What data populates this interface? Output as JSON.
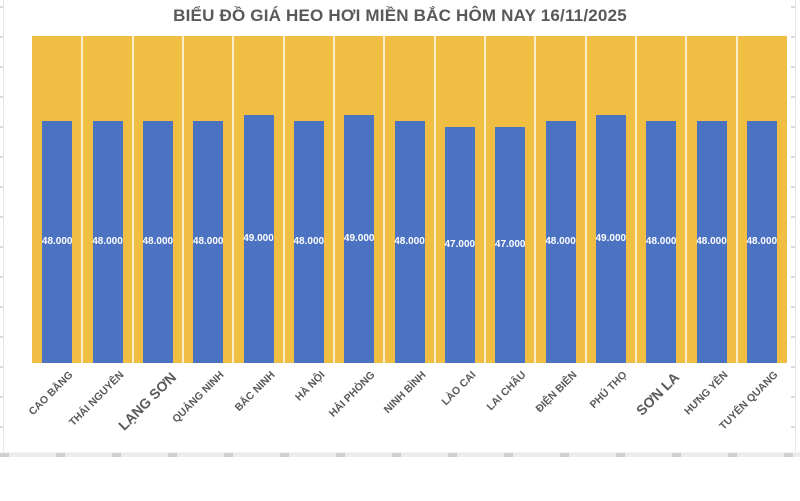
{
  "chart_data": {
    "type": "bar",
    "title": "BIỂU ĐỒ GIÁ HEO HƠI MIỀN BẮC HÔM NAY 16/11/2025",
    "categories": [
      "CAO BẰNG",
      "THÁI NGUYÊN",
      "LẠNG SƠN",
      "QUẢNG NINH",
      "BẮC NINH",
      "HÀ NỘI",
      "HẢI PHÒNG",
      "NINH BÌNH",
      "LÀO CAI",
      "LAI CHÂU",
      "ĐIỆN BIÊN",
      "PHÚ THỌ",
      "SƠN LA",
      "HƯNG YÊN",
      "TUYÊN QUANG"
    ],
    "values": [
      48000,
      48000,
      48000,
      48000,
      49000,
      48000,
      49000,
      48000,
      47000,
      47000,
      48000,
      49000,
      48000,
      48000,
      48000
    ],
    "value_labels": [
      "48.000",
      "48.000",
      "48.000",
      "48.000",
      "49.000",
      "48.000",
      "49.000",
      "48.000",
      "47.000",
      "47.000",
      "48.000",
      "49.000",
      "48.000",
      "48.000",
      "48.000"
    ],
    "ylim": [
      8000,
      62000
    ],
    "xlabel": "",
    "ylabel": "",
    "legend": "none",
    "grid": "white vertical separators between categories",
    "axis_label_rotation_deg": 45,
    "large_label_indexes": [
      2,
      12
    ],
    "colors": {
      "bar": "#4C72C2",
      "plot_background": "#F1BE44",
      "value_label": "#FFFFFF",
      "axis_label": "#595959",
      "title": "#595959",
      "separator": "#FFFFFF"
    }
  }
}
